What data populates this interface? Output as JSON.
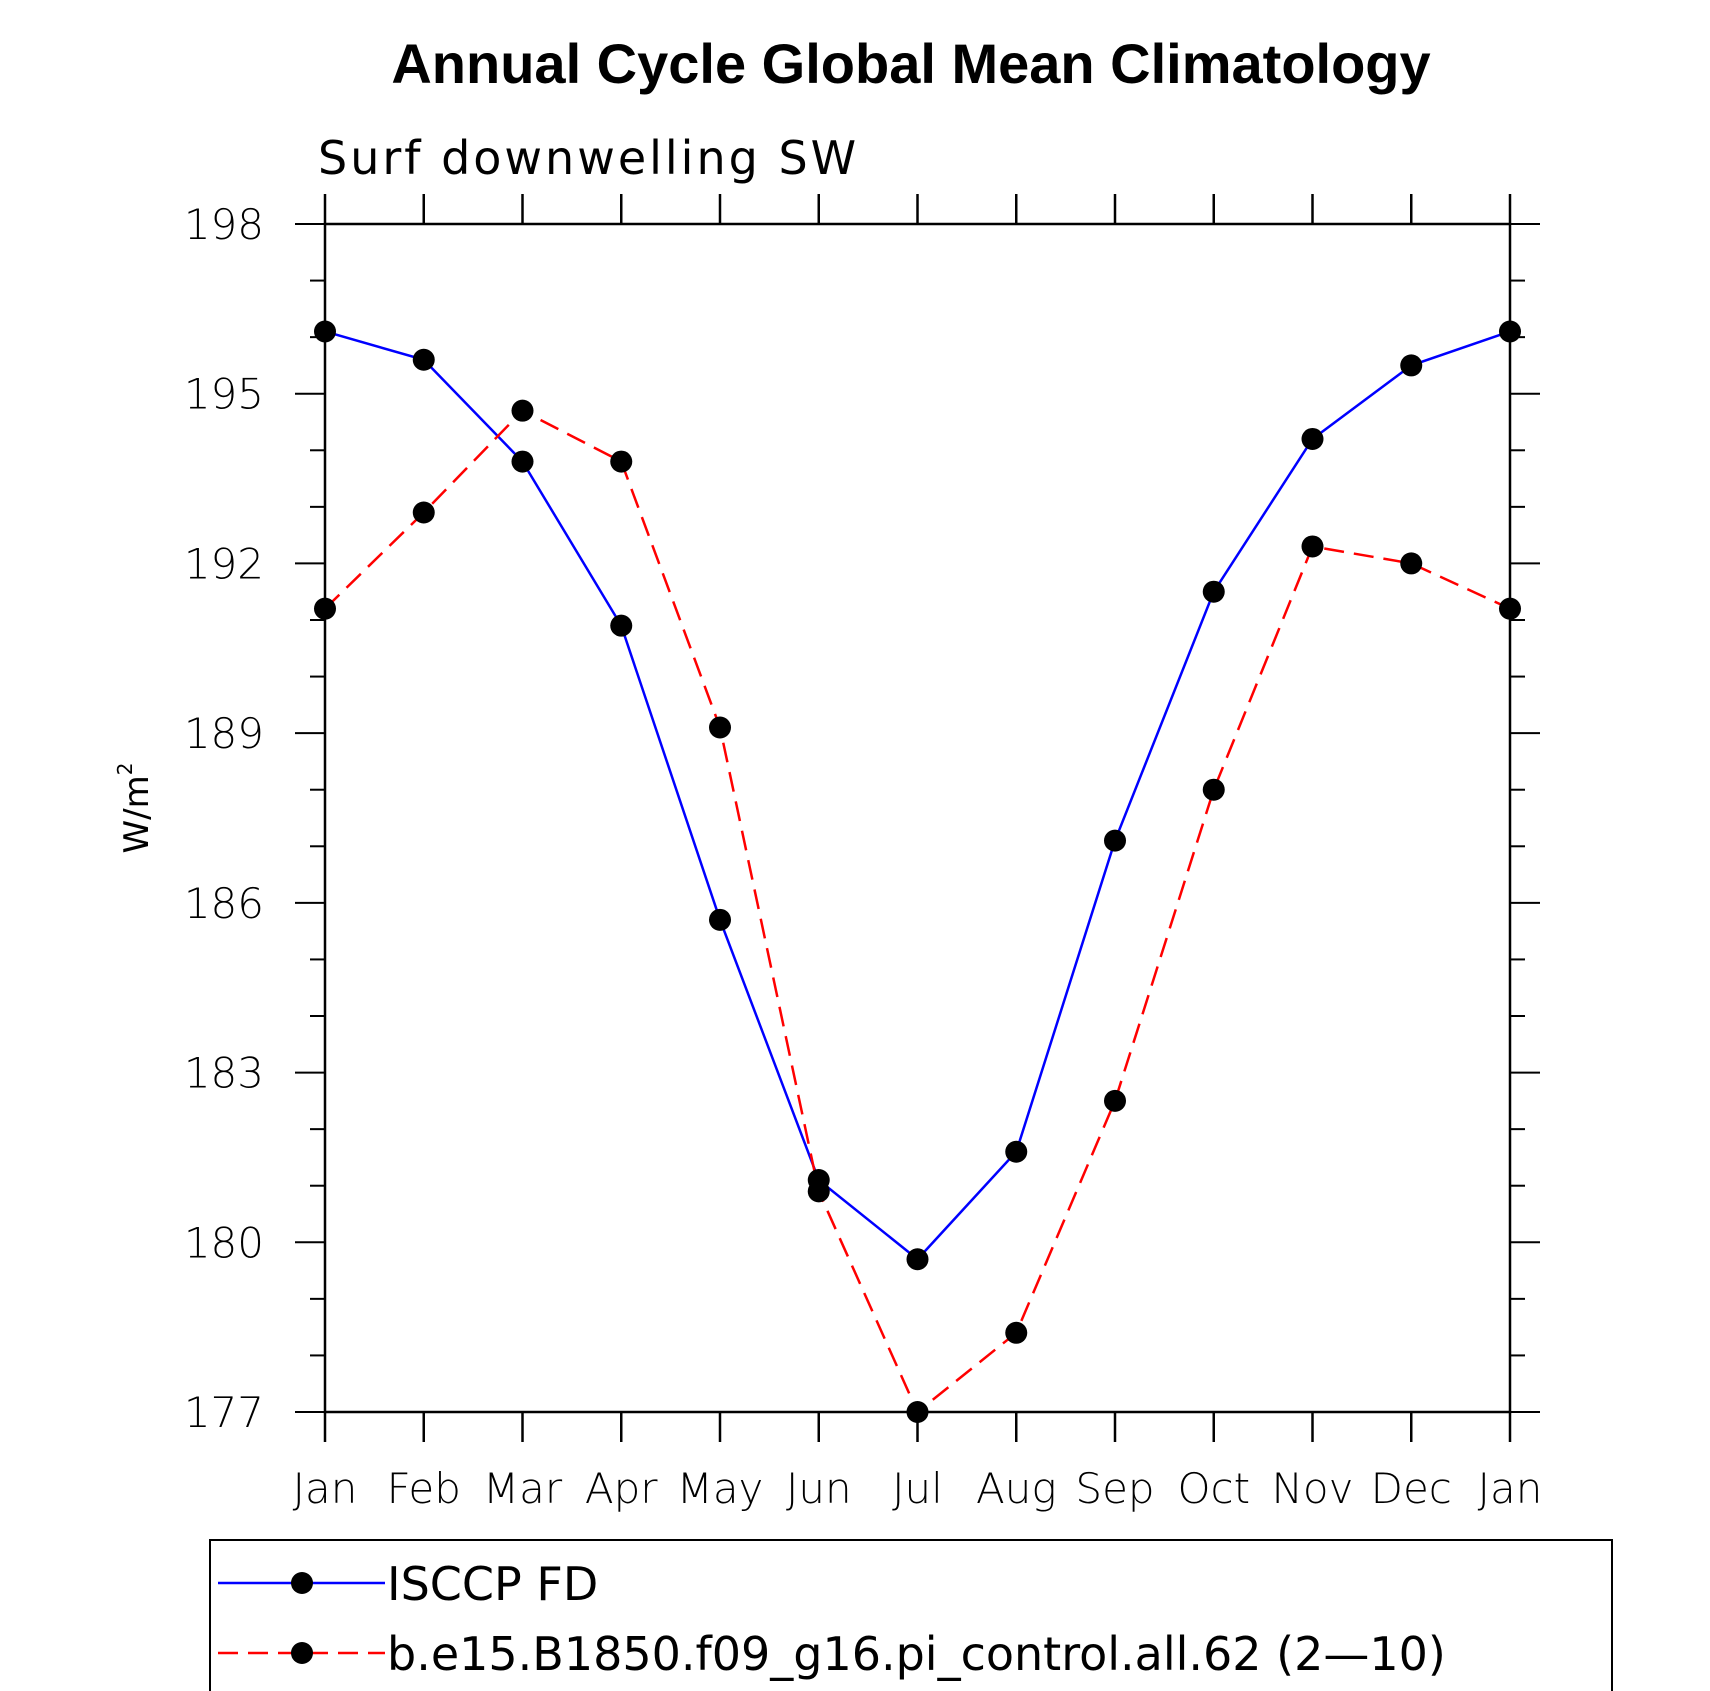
{
  "chart_data": {
    "type": "line",
    "title": "Annual Cycle Global Mean Climatology",
    "subtitle": "Surf downwelling SW",
    "xlabel": "",
    "ylabel": "W/m",
    "ylabel_superscript": "2",
    "categories": [
      "Jan",
      "Feb",
      "Mar",
      "Apr",
      "May",
      "Jun",
      "Jul",
      "Aug",
      "Sep",
      "Oct",
      "Nov",
      "Dec",
      "Jan"
    ],
    "ylim": [
      177,
      198
    ],
    "yticks": [
      177,
      180,
      183,
      186,
      189,
      192,
      195,
      198
    ],
    "y_minor_step": 1,
    "grid": false,
    "legend_placement": "bottom",
    "series": [
      {
        "name": "ISCCP FD",
        "color": "#0000ff",
        "dash": "solid",
        "marker": "filled-circle",
        "values": [
          196.1,
          195.6,
          193.8,
          190.9,
          185.7,
          181.1,
          179.7,
          181.6,
          187.1,
          191.5,
          194.2,
          195.5,
          196.1
        ]
      },
      {
        "name": "b.e15.B1850.f09_g16.pi_control.all.62 (2—10)",
        "color": "#ff0000",
        "dash": "dashed",
        "marker": "filled-circle",
        "values": [
          191.2,
          192.9,
          194.7,
          193.8,
          189.1,
          180.9,
          177.0,
          178.4,
          182.5,
          188.0,
          192.3,
          192.0,
          191.2
        ]
      }
    ]
  }
}
